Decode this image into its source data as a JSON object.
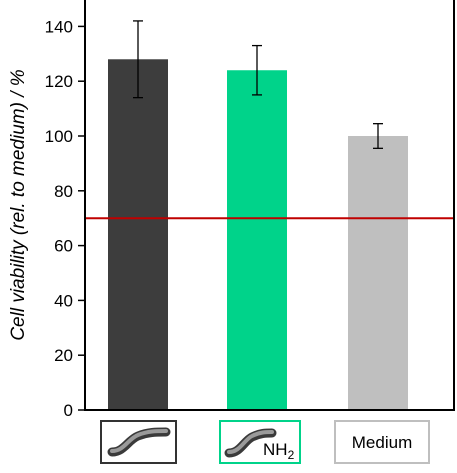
{
  "chart_data": {
    "type": "bar",
    "categories": [
      "",
      "NH2",
      "Medium"
    ],
    "values": [
      128,
      124,
      100
    ],
    "errors": [
      14,
      9,
      4.5
    ],
    "ylabel": "Cell viability (rel. to medium) / %",
    "ylim": [
      0,
      150
    ],
    "yticks": [
      0,
      20,
      40,
      60,
      80,
      100,
      120,
      140
    ],
    "threshold": 70,
    "grid": false,
    "colors": {
      "bars": [
        "#3d3d3d",
        "#00d38a",
        "#bfbfbf"
      ],
      "threshold_line": "#c00000",
      "category_box_borders": [
        "#333333",
        "#00d38a",
        "#bfbfbf"
      ]
    },
    "category_icons": [
      "fiber-icon",
      "fiber-amine-icon",
      ""
    ]
  }
}
